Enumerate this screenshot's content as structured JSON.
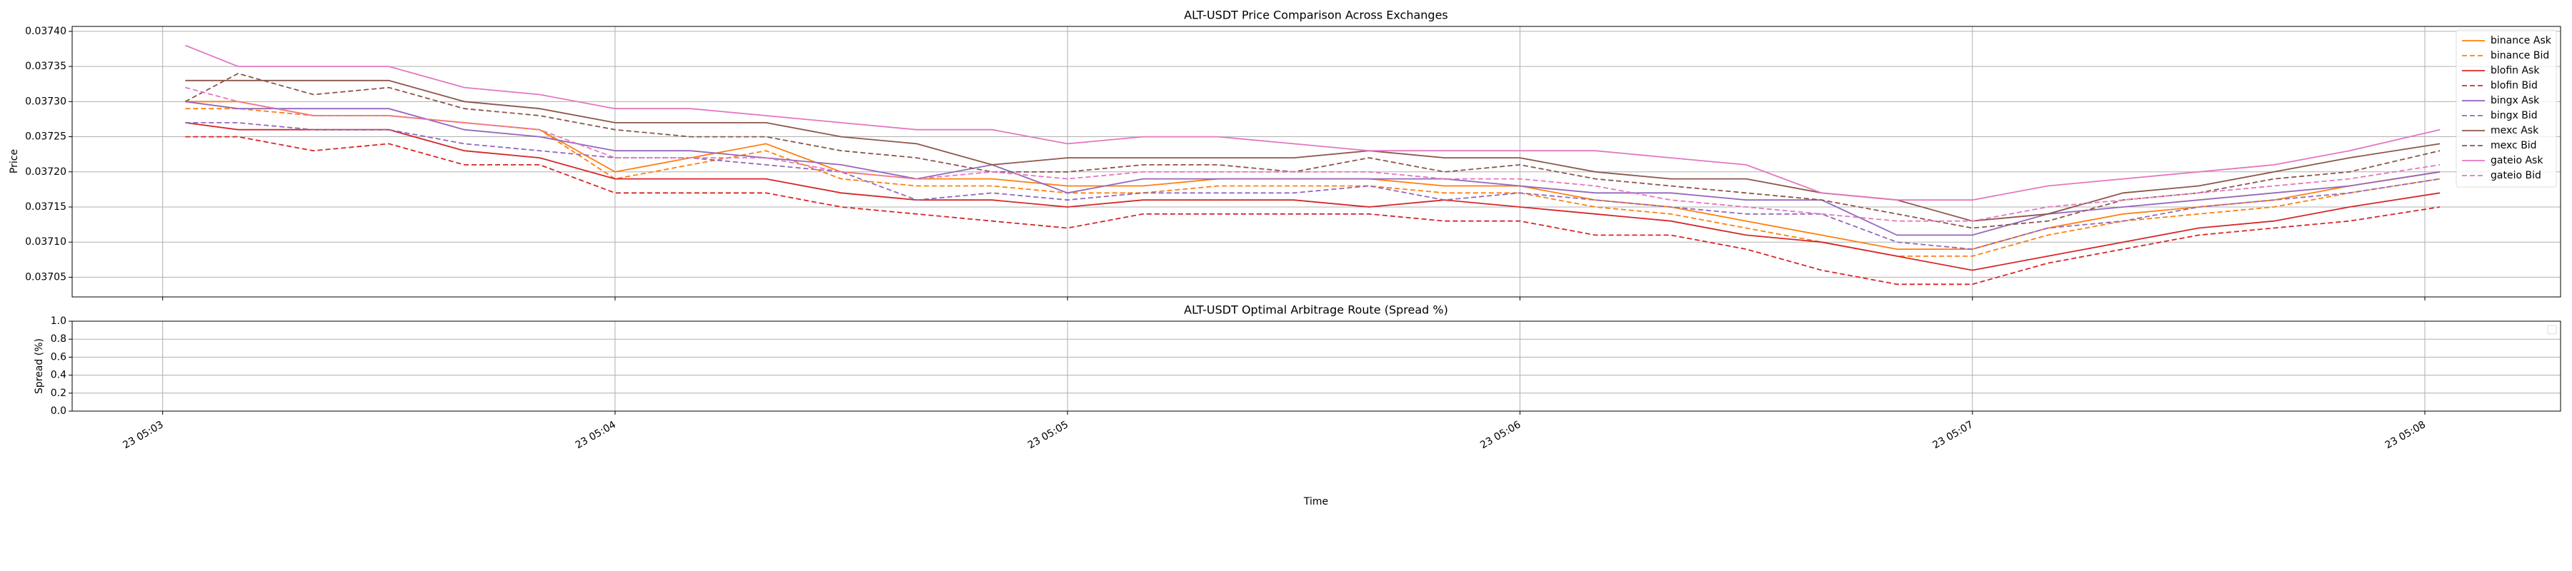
{
  "chart_data": [
    {
      "type": "line",
      "title": "ALT-USDT Price Comparison Across Exchanges",
      "ylabel": "Price",
      "x": [
        183,
        190,
        200,
        210,
        220,
        230,
        240,
        250,
        260,
        270,
        280,
        290,
        300,
        310,
        320,
        330,
        340,
        350,
        360,
        370,
        380,
        390,
        400,
        410,
        420,
        430,
        440,
        450,
        460,
        470,
        482
      ],
      "xlim": [
        168,
        498
      ],
      "xticks": [
        180,
        240,
        300,
        360,
        420,
        480
      ],
      "ylim": [
        0.037022,
        0.037407
      ],
      "yticks": [
        0.03705,
        {
          "value": 0.0371,
          "label": "0.03710"
        },
        0.03715,
        {
          "value": 0.0372,
          "label": "0.03720"
        },
        0.03725,
        {
          "value": 0.0373,
          "label": "0.03730"
        },
        0.03735,
        {
          "value": 0.0374,
          "label": "0.03740"
        }
      ],
      "grid": true,
      "legend": "upper right",
      "series": [
        {
          "name": "binance Ask",
          "color": "#ff7f0e",
          "linestyle": "solid",
          "values": [
            0.0373,
            0.0373,
            0.03728,
            0.03728,
            0.03727,
            0.03726,
            0.0372,
            0.03722,
            0.03724,
            0.0372,
            0.03719,
            0.03719,
            0.03718,
            0.03718,
            0.03719,
            0.03719,
            0.03719,
            0.03718,
            0.03718,
            0.03716,
            0.03715,
            0.03713,
            0.03711,
            0.03709,
            0.03709,
            0.03712,
            0.03714,
            0.03715,
            0.03716,
            0.03718,
            0.0372
          ]
        },
        {
          "name": "binance Bid",
          "color": "#ff7f0e",
          "linestyle": "dashed",
          "values": [
            0.03729,
            0.03729,
            0.03728,
            0.03728,
            0.03727,
            0.03726,
            0.03719,
            0.03721,
            0.03723,
            0.03719,
            0.03718,
            0.03718,
            0.03717,
            0.03717,
            0.03718,
            0.03718,
            0.03718,
            0.03717,
            0.03717,
            0.03715,
            0.03714,
            0.03712,
            0.0371,
            0.03708,
            0.03708,
            0.03711,
            0.03713,
            0.03714,
            0.03715,
            0.03717,
            0.03719
          ]
        },
        {
          "name": "blofin Ask",
          "color": "#d62728",
          "linestyle": "solid",
          "values": [
            0.03727,
            0.03726,
            0.03726,
            0.03726,
            0.03723,
            0.03722,
            0.03719,
            0.03719,
            0.03719,
            0.03717,
            0.03716,
            0.03716,
            0.03715,
            0.03716,
            0.03716,
            0.03716,
            0.03715,
            0.03716,
            0.03715,
            0.03714,
            0.03713,
            0.03711,
            0.0371,
            0.03708,
            0.03706,
            0.03708,
            0.0371,
            0.03712,
            0.03713,
            0.03715,
            0.03717
          ]
        },
        {
          "name": "blofin Bid",
          "color": "#d62728",
          "linestyle": "dashed",
          "values": [
            0.03725,
            0.03725,
            0.03723,
            0.03724,
            0.03721,
            0.03721,
            0.03717,
            0.03717,
            0.03717,
            0.03715,
            0.03714,
            0.03713,
            0.03712,
            0.03714,
            0.03714,
            0.03714,
            0.03714,
            0.03713,
            0.03713,
            0.03711,
            0.03711,
            0.03709,
            0.03706,
            0.03704,
            0.03704,
            0.03707,
            0.03709,
            0.03711,
            0.03712,
            0.03713,
            0.03715
          ]
        },
        {
          "name": "bingx Ask",
          "color": "#9467bd",
          "linestyle": "solid",
          "values": [
            0.0373,
            0.03729,
            0.03729,
            0.03729,
            0.03726,
            0.03725,
            0.03723,
            0.03723,
            0.03722,
            0.03721,
            0.03719,
            0.03721,
            0.03717,
            0.03719,
            0.03719,
            0.03719,
            0.03719,
            0.03719,
            0.03718,
            0.03717,
            0.03717,
            0.03716,
            0.03716,
            0.03711,
            0.03711,
            0.03714,
            0.03715,
            0.03716,
            0.03717,
            0.03718,
            0.0372
          ]
        },
        {
          "name": "bingx Bid",
          "color": "#9467bd",
          "linestyle": "dashed",
          "values": [
            0.03727,
            0.03727,
            0.03726,
            0.03726,
            0.03724,
            0.03723,
            0.03722,
            0.03722,
            0.03721,
            0.0372,
            0.03716,
            0.03717,
            0.03716,
            0.03717,
            0.03717,
            0.03717,
            0.03718,
            0.03716,
            0.03717,
            0.03716,
            0.03715,
            0.03714,
            0.03714,
            0.0371,
            0.03709,
            0.03712,
            0.03713,
            0.03715,
            0.03716,
            0.03717,
            0.03719
          ]
        },
        {
          "name": "mexc Ask",
          "color": "#8c564b",
          "linestyle": "solid",
          "values": [
            0.03733,
            0.03733,
            0.03733,
            0.03733,
            0.0373,
            0.03729,
            0.03727,
            0.03727,
            0.03727,
            0.03725,
            0.03724,
            0.03721,
            0.03722,
            0.03722,
            0.03722,
            0.03722,
            0.03723,
            0.03722,
            0.03722,
            0.0372,
            0.03719,
            0.03719,
            0.03717,
            0.03716,
            0.03713,
            0.03714,
            0.03717,
            0.03718,
            0.0372,
            0.03722,
            0.03724
          ]
        },
        {
          "name": "mexc Bid",
          "color": "#8c564b",
          "linestyle": "dashed",
          "values": [
            0.0373,
            0.03734,
            0.03731,
            0.03732,
            0.03729,
            0.03728,
            0.03726,
            0.03725,
            0.03725,
            0.03723,
            0.03722,
            0.0372,
            0.0372,
            0.03721,
            0.03721,
            0.0372,
            0.03722,
            0.0372,
            0.03721,
            0.03719,
            0.03718,
            0.03717,
            0.03716,
            0.03714,
            0.03712,
            0.03713,
            0.03716,
            0.03717,
            0.03719,
            0.0372,
            0.03723
          ]
        },
        {
          "name": "gateio Ask",
          "color": "#e377c2",
          "linestyle": "solid",
          "values": [
            0.03738,
            0.03735,
            0.03735,
            0.03735,
            0.03732,
            0.03731,
            0.03729,
            0.03729,
            0.03728,
            0.03727,
            0.03726,
            0.03726,
            0.03724,
            0.03725,
            0.03725,
            0.03724,
            0.03723,
            0.03723,
            0.03723,
            0.03723,
            0.03722,
            0.03721,
            0.03717,
            0.03716,
            0.03716,
            0.03718,
            0.03719,
            0.0372,
            0.03721,
            0.03723,
            0.03726
          ]
        },
        {
          "name": "gateio Bid",
          "color": "#e377c2",
          "linestyle": "dashed",
          "values": [
            0.03732,
            0.0373,
            0.03728,
            0.03728,
            0.03727,
            0.03726,
            0.03722,
            0.03722,
            0.03722,
            0.0372,
            0.03719,
            0.0372,
            0.03719,
            0.0372,
            0.0372,
            0.0372,
            0.0372,
            0.03719,
            0.03719,
            0.03718,
            0.03716,
            0.03715,
            0.03714,
            0.03713,
            0.03713,
            0.03715,
            0.03716,
            0.03717,
            0.03718,
            0.03719,
            0.03721
          ]
        }
      ]
    },
    {
      "type": "line",
      "title": "ALT-USDT Optimal Arbitrage Route (Spread %)",
      "ylabel": "Spread (%)",
      "xlabel": "Time",
      "xlim": [
        168,
        498
      ],
      "xticks": [
        {
          "value": 180,
          "label": "23 05:03"
        },
        {
          "value": 240,
          "label": "23 05:04"
        },
        {
          "value": 300,
          "label": "23 05:05"
        },
        {
          "value": 360,
          "label": "23 05:06"
        },
        {
          "value": 420,
          "label": "23 05:07"
        },
        {
          "value": 480,
          "label": "23 05:08"
        }
      ],
      "ylim": [
        0,
        1
      ],
      "yticks": [
        {
          "value": 0,
          "label": "0.0"
        },
        0.2,
        0.4,
        0.6,
        0.8,
        {
          "value": 1,
          "label": "1.0"
        }
      ],
      "grid": true,
      "series": []
    }
  ]
}
